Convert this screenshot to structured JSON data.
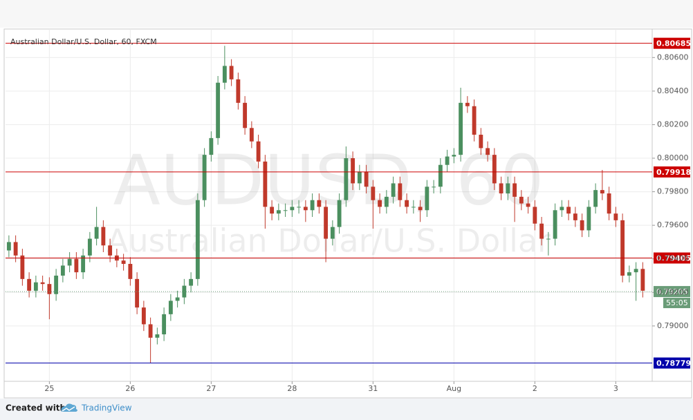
{
  "chart_data": {
    "type": "candlestick",
    "title": "Australian Dollar/U.S. Dollar, 60, FXCM",
    "watermark": {
      "symbol": "AUDUSD, 60",
      "name": "Australian Dollar/U.S. Dollar"
    },
    "xlim": [
      -1,
      190.8
    ],
    "ylim": [
      0.7867,
      0.8077
    ],
    "xticks": [
      {
        "value": 12,
        "label": "25"
      },
      {
        "value": 36,
        "label": "26"
      },
      {
        "value": 60,
        "label": "27"
      },
      {
        "value": 84,
        "label": "28"
      },
      {
        "value": 108,
        "label": "31"
      },
      {
        "value": 132,
        "label": "Aug"
      },
      {
        "value": 156,
        "label": "2"
      },
      {
        "value": 180,
        "label": "3"
      }
    ],
    "yticks": [
      {
        "value": 0.79,
        "label": "0.79000"
      },
      {
        "value": 0.792,
        "label": "0.79200"
      },
      {
        "value": 0.794,
        "label": "0.79400"
      },
      {
        "value": 0.796,
        "label": "0.79600"
      },
      {
        "value": 0.798,
        "label": "0.79800"
      },
      {
        "value": 0.8,
        "label": "0.80000"
      },
      {
        "value": 0.802,
        "label": "0.80200"
      },
      {
        "value": 0.804,
        "label": "0.80400"
      },
      {
        "value": 0.806,
        "label": "0.80600"
      }
    ],
    "grid": true,
    "up_color": "#4b8f5f",
    "down_color": "#c0392b",
    "x": [
      0,
      2,
      4,
      6,
      8,
      10,
      12,
      14,
      16,
      18,
      20,
      22,
      24,
      26,
      28,
      30,
      32,
      34,
      36,
      38,
      40,
      42,
      44,
      46,
      48,
      50,
      52,
      54,
      56,
      58,
      60,
      62,
      64,
      66,
      68,
      70,
      72,
      74,
      76,
      78,
      80,
      82,
      84,
      86,
      88,
      90,
      92,
      94,
      96,
      98,
      100,
      102,
      104,
      106,
      108,
      110,
      112,
      114,
      116,
      118,
      120,
      122,
      124,
      126,
      128,
      130,
      132,
      134,
      136,
      138,
      140,
      142,
      144,
      146,
      148,
      150,
      152,
      154,
      156,
      158,
      160,
      162,
      164,
      166,
      168,
      170,
      172,
      174,
      176,
      178,
      180,
      182,
      184,
      186,
      188
    ],
    "open": [
      0.7945,
      0.795,
      0.7942,
      0.7928,
      0.7921,
      0.7926,
      0.7925,
      0.7919,
      0.793,
      0.7936,
      0.794,
      0.7932,
      0.7942,
      0.7952,
      0.7959,
      0.7948,
      0.7942,
      0.7939,
      0.7937,
      0.7928,
      0.7911,
      0.7901,
      0.7893,
      0.7895,
      0.7907,
      0.7915,
      0.7917,
      0.7924,
      0.7928,
      0.7975,
      0.8002,
      0.8012,
      0.8045,
      0.8055,
      0.8047,
      0.8033,
      0.8018,
      0.801,
      0.7998,
      0.7971,
      0.7967,
      0.7969,
      0.7969,
      0.7971,
      0.7971,
      0.7969,
      0.7975,
      0.7971,
      0.7952,
      0.7959,
      0.7975,
      0.8,
      0.7985,
      0.7992,
      0.7983,
      0.7975,
      0.7971,
      0.7977,
      0.7985,
      0.7975,
      0.7971,
      0.7971,
      0.7969,
      0.7983,
      0.7983,
      0.7996,
      0.8001,
      0.8002,
      0.8033,
      0.8031,
      0.8014,
      0.8006,
      0.8002,
      0.7985,
      0.7979,
      0.7985,
      0.7977,
      0.7973,
      0.7971,
      0.7961,
      0.7952,
      0.7952,
      0.7969,
      0.7971,
      0.7967,
      0.7963,
      0.7957,
      0.7971,
      0.7981,
      0.7979,
      0.7967,
      0.7963,
      0.793,
      0.7932,
      0.7934
    ],
    "high": [
      0.7954,
      0.7954,
      0.7946,
      0.7932,
      0.793,
      0.793,
      0.7929,
      0.7934,
      0.794,
      0.7944,
      0.7944,
      0.7946,
      0.7956,
      0.7971,
      0.7963,
      0.7952,
      0.7946,
      0.7943,
      0.7941,
      0.7932,
      0.7915,
      0.7905,
      0.7899,
      0.7911,
      0.7919,
      0.7921,
      0.7928,
      0.7932,
      0.7979,
      0.8006,
      0.8016,
      0.8049,
      0.8067,
      0.8059,
      0.8051,
      0.8037,
      0.8022,
      0.8014,
      0.8002,
      0.7975,
      0.7973,
      0.7973,
      0.7975,
      0.7975,
      0.7975,
      0.7979,
      0.7979,
      0.7975,
      0.7963,
      0.7979,
      0.8007,
      0.8004,
      0.7996,
      0.7996,
      0.7987,
      0.7979,
      0.7981,
      0.7989,
      0.7989,
      0.7979,
      0.7975,
      0.7975,
      0.7987,
      0.7987,
      0.8,
      0.8005,
      0.8006,
      0.8042,
      0.8037,
      0.8035,
      0.8018,
      0.801,
      0.8006,
      0.7989,
      0.7989,
      0.7989,
      0.7981,
      0.7977,
      0.7975,
      0.7965,
      0.7956,
      0.7973,
      0.7975,
      0.7975,
      0.7971,
      0.7967,
      0.7975,
      0.7985,
      0.7993,
      0.7983,
      0.7971,
      0.7967,
      0.7936,
      0.7938,
      0.7938
    ],
    "low": [
      0.7941,
      0.7938,
      0.7924,
      0.7917,
      0.7917,
      0.7921,
      0.7904,
      0.7915,
      0.7926,
      0.7932,
      0.7928,
      0.7928,
      0.7938,
      0.7948,
      0.7944,
      0.7938,
      0.7935,
      0.7933,
      0.7924,
      0.7907,
      0.7897,
      0.7878,
      0.7889,
      0.7891,
      0.7903,
      0.7911,
      0.7913,
      0.792,
      0.7924,
      0.7971,
      0.7998,
      0.8008,
      0.8041,
      0.8043,
      0.8029,
      0.8014,
      0.8006,
      0.7994,
      0.7958,
      0.7963,
      0.7963,
      0.7965,
      0.7965,
      0.7967,
      0.7962,
      0.7965,
      0.7967,
      0.7938,
      0.7948,
      0.7955,
      0.7971,
      0.7981,
      0.7981,
      0.7979,
      0.7958,
      0.7967,
      0.7967,
      0.7973,
      0.7971,
      0.7967,
      0.7967,
      0.7962,
      0.7965,
      0.7979,
      0.7979,
      0.7992,
      0.7997,
      0.7998,
      0.8027,
      0.801,
      0.8002,
      0.7998,
      0.7981,
      0.7975,
      0.7975,
      0.7962,
      0.7969,
      0.7967,
      0.7957,
      0.7948,
      0.7942,
      0.7948,
      0.7965,
      0.7963,
      0.7959,
      0.7953,
      0.7953,
      0.7967,
      0.7975,
      0.7963,
      0.7959,
      0.7926,
      0.7926,
      0.7915,
      0.7917
    ],
    "close": [
      0.795,
      0.7942,
      0.7928,
      0.7921,
      0.7926,
      0.7925,
      0.7919,
      0.793,
      0.7936,
      0.794,
      0.7932,
      0.7942,
      0.7952,
      0.7959,
      0.7948,
      0.7942,
      0.7939,
      0.7937,
      0.7928,
      0.7911,
      0.7901,
      0.7893,
      0.7895,
      0.7907,
      0.7915,
      0.7917,
      0.7924,
      0.7928,
      0.7975,
      0.8002,
      0.8012,
      0.8045,
      0.8055,
      0.8047,
      0.8033,
      0.8018,
      0.801,
      0.7998,
      0.7971,
      0.7967,
      0.7969,
      0.7969,
      0.7971,
      0.7971,
      0.7969,
      0.7975,
      0.7971,
      0.7952,
      0.7959,
      0.7975,
      0.8,
      0.7985,
      0.7992,
      0.7983,
      0.7975,
      0.7971,
      0.7977,
      0.7985,
      0.7975,
      0.7971,
      0.7971,
      0.7969,
      0.7983,
      0.7983,
      0.7996,
      0.8001,
      0.8002,
      0.8033,
      0.8031,
      0.8014,
      0.8006,
      0.8002,
      0.7985,
      0.7979,
      0.7985,
      0.7977,
      0.7973,
      0.7971,
      0.7961,
      0.7952,
      0.7952,
      0.7969,
      0.7971,
      0.7967,
      0.7963,
      0.7957,
      0.7971,
      0.7981,
      0.7979,
      0.7967,
      0.7963,
      0.793,
      0.7932,
      0.7934,
      0.7921
    ],
    "levels": [
      {
        "value": 0.80685,
        "color": "#cc0000"
      },
      {
        "value": 0.79918,
        "color": "#cc0000"
      },
      {
        "value": 0.79405,
        "color": "#cc0000"
      },
      {
        "value": 0.78779,
        "color": "#0000aa"
      }
    ],
    "current": {
      "value": 0.79205,
      "countdown": "55:05",
      "color": "#6a9c78"
    },
    "footer": {
      "created_with": "Created with",
      "brand": "TradingView"
    }
  }
}
